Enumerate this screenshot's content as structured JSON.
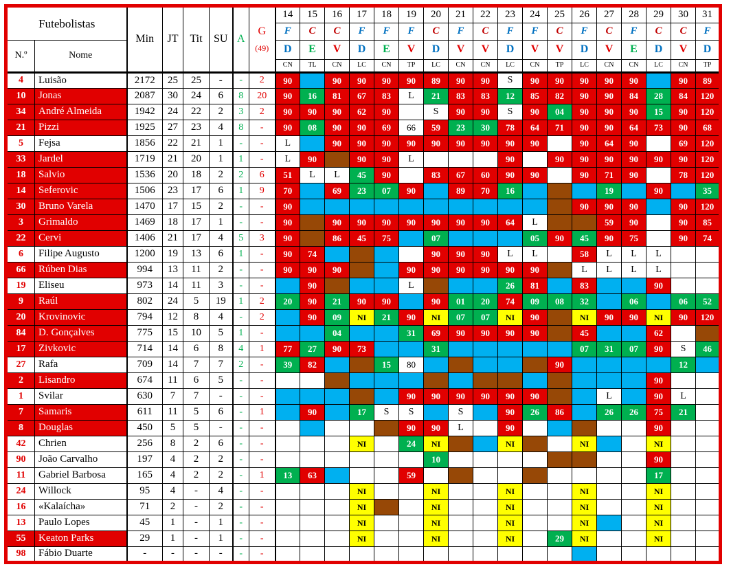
{
  "header": {
    "futebolistas": "Futebolistas",
    "num": "N.º",
    "nome": "Nome",
    "min": "Min",
    "jt": "JT",
    "tit": "Tit",
    "su": "SU",
    "a": "A",
    "g": "G",
    "g_total": "(49)"
  },
  "colors": {
    "red_cell": "#e10000",
    "green_cell": "#00b050",
    "blue_cell": "#00b0f0",
    "brown_cell": "#974806",
    "yellow_cell": "#ffff00",
    "venue_home": "#c00000",
    "venue_away": "#0070c0",
    "result_D": "#0070c0",
    "result_E": "#00b050",
    "result_V": "#e10000",
    "accent_red": "#e10000",
    "accent_green": "#00b050"
  },
  "matchdays": [
    {
      "n": "14",
      "venue": "F",
      "result": "D",
      "comp": "CN"
    },
    {
      "n": "15",
      "venue": "C",
      "result": "E",
      "comp": "TL"
    },
    {
      "n": "16",
      "venue": "C",
      "result": "V",
      "comp": "CN"
    },
    {
      "n": "17",
      "venue": "F",
      "result": "D",
      "comp": "LC"
    },
    {
      "n": "18",
      "venue": "F",
      "result": "E",
      "comp": "CN"
    },
    {
      "n": "19",
      "venue": "F",
      "result": "V",
      "comp": "TP"
    },
    {
      "n": "20",
      "venue": "C",
      "result": "D",
      "comp": "LC"
    },
    {
      "n": "21",
      "venue": "F",
      "result": "V",
      "comp": "CN"
    },
    {
      "n": "22",
      "venue": "C",
      "result": "V",
      "comp": "CN"
    },
    {
      "n": "23",
      "venue": "F",
      "result": "D",
      "comp": "LC"
    },
    {
      "n": "24",
      "venue": "F",
      "result": "V",
      "comp": "CN"
    },
    {
      "n": "25",
      "venue": "C",
      "result": "V",
      "comp": "TP"
    },
    {
      "n": "26",
      "venue": "F",
      "result": "D",
      "comp": "LC"
    },
    {
      "n": "27",
      "venue": "C",
      "result": "V",
      "comp": "CN"
    },
    {
      "n": "28",
      "venue": "F",
      "result": "E",
      "comp": "CN"
    },
    {
      "n": "29",
      "venue": "C",
      "result": "D",
      "comp": "LC"
    },
    {
      "n": "30",
      "venue": "C",
      "result": "V",
      "comp": "CN"
    },
    {
      "n": "31",
      "venue": "F",
      "result": "D",
      "comp": "TP"
    }
  ],
  "players": [
    {
      "num": "4",
      "name": "Luisão",
      "red": false,
      "min": "2172",
      "jt": "25",
      "tit": "25",
      "su": "-",
      "a": "-",
      "g": "2",
      "cells": [
        "R:90",
        "C",
        "R:90",
        "R:90",
        "R:90",
        "R:90",
        "R:89",
        "R:90",
        "R:90",
        "S",
        "R:90",
        "R:90",
        "R:90",
        "R:90",
        "R:90",
        "C",
        "R:90",
        "R:89"
      ]
    },
    {
      "num": "10",
      "name": "Jonas",
      "red": true,
      "min": "2087",
      "jt": "30",
      "tit": "24",
      "su": "6",
      "a": "8",
      "g": "20",
      "cells": [
        "R:90",
        "G:16",
        "R:81",
        "R:67",
        "R:83",
        "L",
        "G:21",
        "R:83",
        "R:83",
        "G:12",
        "R:85",
        "R:82",
        "R:90",
        "R:90",
        "R:84",
        "G:28",
        "R:84",
        "R:120"
      ]
    },
    {
      "num": "34",
      "name": "André Almeida",
      "red": true,
      "min": "1942",
      "jt": "24",
      "tit": "22",
      "su": "2",
      "a": "3",
      "g": "2",
      "cells": [
        "R:90",
        "R:90",
        "R:90",
        "R:62",
        "R:90",
        "",
        "S",
        "R:90",
        "R:90",
        "S",
        "R:90",
        "G:04",
        "R:90",
        "R:90",
        "R:90",
        "G:15",
        "R:90",
        "R:120"
      ]
    },
    {
      "num": "21",
      "name": "Pizzi",
      "red": true,
      "min": "1925",
      "jt": "27",
      "tit": "23",
      "su": "4",
      "a": "8",
      "g": "-",
      "cells": [
        "R:90",
        "G:08",
        "R:90",
        "R:90",
        "R:69",
        "W:66",
        "R:59",
        "G:23",
        "G:30",
        "R:78",
        "R:64",
        "R:71",
        "R:90",
        "R:90",
        "R:64",
        "R:73",
        "R:90",
        "R:68"
      ]
    },
    {
      "num": "5",
      "name": "Fejsa",
      "red": false,
      "min": "1856",
      "jt": "22",
      "tit": "21",
      "su": "1",
      "a": "-",
      "g": "-",
      "cells": [
        "L",
        "C",
        "R:90",
        "R:90",
        "R:90",
        "R:90",
        "R:90",
        "R:90",
        "R:90",
        "R:90",
        "R:90",
        "",
        "R:90",
        "R:64",
        "R:90",
        "",
        "R:69",
        "R:120"
      ]
    },
    {
      "num": "33",
      "name": "Jardel",
      "red": true,
      "min": "1719",
      "jt": "21",
      "tit": "20",
      "su": "1",
      "a": "1",
      "g": "-",
      "cells": [
        "L",
        "R:90",
        "B",
        "R:90",
        "R:90",
        "L",
        "",
        "",
        "",
        "R:90",
        "",
        "R:90",
        "R:90",
        "R:90",
        "R:90",
        "R:90",
        "R:90",
        "R:120"
      ]
    },
    {
      "num": "18",
      "name": "Salvio",
      "red": true,
      "min": "1536",
      "jt": "20",
      "tit": "18",
      "su": "2",
      "a": "2",
      "g": "6",
      "cells": [
        "R:51",
        "L",
        "L",
        "G:45",
        "R:90",
        "",
        "R:83",
        "R:67",
        "R:60",
        "R:90",
        "R:90",
        "",
        "R:90",
        "R:71",
        "R:90",
        "",
        "R:78",
        "R:120"
      ]
    },
    {
      "num": "14",
      "name": "Seferovic",
      "red": true,
      "min": "1506",
      "jt": "23",
      "tit": "17",
      "su": "6",
      "a": "1",
      "g": "9",
      "cells": [
        "R:70",
        "C",
        "R:69",
        "G:23",
        "G:07",
        "R:90",
        "C",
        "R:89",
        "R:70",
        "G:16",
        "C",
        "B",
        "C",
        "G:19",
        "C",
        "R:90",
        "C",
        "G:35"
      ]
    },
    {
      "num": "30",
      "name": "Bruno Varela",
      "red": true,
      "min": "1470",
      "jt": "17",
      "tit": "15",
      "su": "2",
      "a": "-",
      "g": "-",
      "cells": [
        "R:90",
        "C",
        "C",
        "C",
        "C",
        "C",
        "C",
        "C",
        "C",
        "C",
        "C",
        "B",
        "R:90",
        "R:90",
        "R:90",
        "C",
        "R:90",
        "R:120"
      ]
    },
    {
      "num": "3",
      "name": "Grimaldo",
      "red": true,
      "min": "1469",
      "jt": "18",
      "tit": "17",
      "su": "1",
      "a": "-",
      "g": "-",
      "cells": [
        "R:90",
        "B",
        "R:90",
        "R:90",
        "R:90",
        "R:90",
        "R:90",
        "R:90",
        "R:90",
        "R:64",
        "L",
        "B",
        "B",
        "R:59",
        "R:90",
        "",
        "R:90",
        "R:85"
      ]
    },
    {
      "num": "22",
      "name": "Cervi",
      "red": true,
      "min": "1406",
      "jt": "21",
      "tit": "17",
      "su": "4",
      "a": "5",
      "g": "3",
      "cells": [
        "R:90",
        "B",
        "R:86",
        "R:45",
        "R:75",
        "C",
        "G:07",
        "C",
        "C",
        "C",
        "G:05",
        "R:90",
        "G:45",
        "R:90",
        "R:75",
        "",
        "R:90",
        "R:74"
      ]
    },
    {
      "num": "6",
      "name": "Filipe Augusto",
      "red": false,
      "min": "1200",
      "jt": "19",
      "tit": "13",
      "su": "6",
      "a": "1",
      "g": "-",
      "cells": [
        "R:90",
        "R:74",
        "C",
        "B",
        "C",
        "",
        "R:90",
        "R:90",
        "R:90",
        "L",
        "L",
        "",
        "R:58",
        "L",
        "L",
        "L",
        "",
        ""
      ]
    },
    {
      "num": "66",
      "name": "Rúben Dias",
      "red": true,
      "min": "994",
      "jt": "13",
      "tit": "11",
      "su": "2",
      "a": "-",
      "g": "-",
      "cells": [
        "R:90",
        "R:90",
        "R:90",
        "B",
        "C",
        "R:90",
        "R:90",
        "R:90",
        "R:90",
        "R:90",
        "R:90",
        "B",
        "L",
        "L",
        "L",
        "L",
        "",
        ""
      ]
    },
    {
      "num": "19",
      "name": "Eliseu",
      "red": false,
      "min": "973",
      "jt": "14",
      "tit": "11",
      "su": "3",
      "a": "-",
      "g": "-",
      "cells": [
        "C",
        "R:90",
        "B",
        "C",
        "C",
        "L",
        "B",
        "C",
        "C",
        "G:26",
        "R:81",
        "C",
        "R:83",
        "C",
        "C",
        "R:90",
        "",
        ""
      ]
    },
    {
      "num": "9",
      "name": "Raúl",
      "red": true,
      "min": "802",
      "jt": "24",
      "tit": "5",
      "su": "19",
      "a": "1",
      "g": "2",
      "cells": [
        "G:20",
        "R:90",
        "G:21",
        "R:90",
        "R:90",
        "C",
        "R:90",
        "G:01",
        "G:20",
        "R:74",
        "G:09",
        "G:08",
        "G:32",
        "C",
        "G:06",
        "C",
        "G:06",
        "G:52"
      ]
    },
    {
      "num": "20",
      "name": "Krovinovic",
      "red": true,
      "min": "794",
      "jt": "12",
      "tit": "8",
      "su": "4",
      "a": "-",
      "g": "2",
      "cells": [
        "C",
        "R:90",
        "G:09",
        "Y",
        "G:21",
        "R:90",
        "Y",
        "G:07",
        "G:07",
        "Y",
        "R:90",
        "B",
        "Y",
        "R:90",
        "R:90",
        "Y",
        "R:90",
        "R:120"
      ]
    },
    {
      "num": "84",
      "name": "D. Gonçalves",
      "red": true,
      "min": "775",
      "jt": "15",
      "tit": "10",
      "su": "5",
      "a": "1",
      "g": "-",
      "cells": [
        "C",
        "C",
        "G:04",
        "C",
        "C",
        "G:31",
        "R:69",
        "R:90",
        "R:90",
        "R:90",
        "R:90",
        "B",
        "R:45",
        "C",
        "C",
        "R:62",
        "",
        "B"
      ]
    },
    {
      "num": "17",
      "name": "Zivkovic",
      "red": true,
      "min": "714",
      "jt": "14",
      "tit": "6",
      "su": "8",
      "a": "4",
      "g": "1",
      "cells": [
        "R:77",
        "G:27",
        "R:90",
        "R:73",
        "C",
        "C",
        "G:31",
        "C",
        "C",
        "C",
        "C",
        "C",
        "G:07",
        "G:31",
        "G:07",
        "R:90",
        "S",
        "G:46"
      ]
    },
    {
      "num": "27",
      "name": "Rafa",
      "red": false,
      "min": "709",
      "jt": "14",
      "tit": "7",
      "su": "7",
      "a": "2",
      "g": "-",
      "cells": [
        "G:39",
        "R:82",
        "C",
        "B",
        "G:15",
        "W:80",
        "C",
        "B",
        "C",
        "C",
        "B",
        "R:90",
        "C",
        "C",
        "C",
        "C",
        "G:12",
        "C"
      ]
    },
    {
      "num": "2",
      "name": "Lisandro",
      "red": true,
      "min": "674",
      "jt": "11",
      "tit": "6",
      "su": "5",
      "a": "-",
      "g": "-",
      "cells": [
        "",
        "",
        "B",
        "C",
        "C",
        "C",
        "B",
        "C",
        "B",
        "B",
        "C",
        "B",
        "C",
        "C",
        "C",
        "R:90",
        "",
        ""
      ]
    },
    {
      "num": "1",
      "name": "Svilar",
      "red": false,
      "min": "630",
      "jt": "7",
      "tit": "7",
      "su": "-",
      "a": "-",
      "g": "-",
      "cells": [
        "C",
        "C",
        "C",
        "B",
        "C",
        "R:90",
        "R:90",
        "R:90",
        "R:90",
        "R:90",
        "R:90",
        "B",
        "C",
        "L",
        "C",
        "R:90",
        "L",
        ""
      ]
    },
    {
      "num": "7",
      "name": "Samaris",
      "red": true,
      "min": "611",
      "jt": "11",
      "tit": "5",
      "su": "6",
      "a": "-",
      "g": "1",
      "cells": [
        "C",
        "R:90",
        "C",
        "G:17",
        "S",
        "S",
        "C",
        "S",
        "C",
        "R:90",
        "G:26",
        "R:86",
        "C",
        "G:26",
        "G:26",
        "R:75",
        "G:21",
        ""
      ]
    },
    {
      "num": "8",
      "name": "Douglas",
      "red": true,
      "min": "450",
      "jt": "5",
      "tit": "5",
      "su": "-",
      "a": "-",
      "g": "-",
      "cells": [
        "",
        "C",
        "",
        "",
        "B",
        "R:90",
        "R:90",
        "L",
        "",
        "R:90",
        "",
        "C",
        "B",
        "",
        "",
        "R:90",
        "",
        ""
      ]
    },
    {
      "num": "42",
      "name": "Chrien",
      "red": false,
      "min": "256",
      "jt": "8",
      "tit": "2",
      "su": "6",
      "a": "-",
      "g": "-",
      "cells": [
        "",
        "",
        "",
        "Y",
        "",
        "G:24",
        "Y",
        "B",
        "C",
        "Y",
        "B",
        "",
        "Y",
        "C",
        "",
        "Y",
        "",
        ""
      ]
    },
    {
      "num": "90",
      "name": "João Carvalho",
      "red": false,
      "min": "197",
      "jt": "4",
      "tit": "2",
      "su": "2",
      "a": "-",
      "g": "-",
      "cells": [
        "",
        "",
        "",
        "",
        "",
        "",
        "G:10",
        "",
        "",
        "",
        "",
        "B",
        "B",
        "",
        "",
        "R:90",
        "",
        ""
      ]
    },
    {
      "num": "11",
      "name": "Gabriel Barbosa",
      "red": false,
      "min": "165",
      "jt": "4",
      "tit": "2",
      "su": "2",
      "a": "-",
      "g": "1",
      "cells": [
        "G:13",
        "R:63",
        "C",
        "",
        "",
        "R:59",
        "",
        "B",
        "",
        "",
        "B",
        "",
        "",
        "",
        "",
        "G:17",
        "",
        ""
      ]
    },
    {
      "num": "24",
      "name": "Willock",
      "red": false,
      "min": "95",
      "jt": "4",
      "tit": "-",
      "su": "4",
      "a": "-",
      "g": "-",
      "cells": [
        "",
        "",
        "",
        "Y",
        "",
        "",
        "Y",
        "",
        "",
        "Y",
        "",
        "",
        "Y",
        "",
        "",
        "Y",
        "",
        ""
      ]
    },
    {
      "num": "16",
      "name": "«Kalaícha»",
      "red": false,
      "min": "71",
      "jt": "2",
      "tit": "-",
      "su": "2",
      "a": "-",
      "g": "-",
      "cells": [
        "",
        "",
        "",
        "Y",
        "B",
        "",
        "Y",
        "",
        "",
        "Y",
        "",
        "",
        "Y",
        "",
        "",
        "Y",
        "",
        ""
      ]
    },
    {
      "num": "13",
      "name": "Paulo Lopes",
      "red": false,
      "min": "45",
      "jt": "1",
      "tit": "-",
      "su": "1",
      "a": "-",
      "g": "-",
      "cells": [
        "",
        "",
        "",
        "Y",
        "",
        "",
        "Y",
        "",
        "",
        "Y",
        "",
        "",
        "Y",
        "C",
        "",
        "Y",
        "",
        ""
      ]
    },
    {
      "num": "55",
      "name": "Keaton Parks",
      "red": true,
      "min": "29",
      "jt": "1",
      "tit": "-",
      "su": "1",
      "a": "-",
      "g": "-",
      "cells": [
        "",
        "",
        "",
        "Y",
        "",
        "",
        "Y",
        "",
        "",
        "Y",
        "",
        "G:29",
        "Y",
        "",
        "",
        "Y",
        "",
        ""
      ]
    },
    {
      "num": "98",
      "name": "Fábio Duarte",
      "red": false,
      "min": "-",
      "jt": "-",
      "tit": "-",
      "su": "-",
      "a": "-",
      "g": "-",
      "cells": [
        "",
        "",
        "",
        "",
        "",
        "",
        "",
        "",
        "",
        "",
        "",
        "",
        "C",
        "",
        "",
        "",
        "",
        ""
      ]
    }
  ],
  "cell_legend": {
    "R": "started-minutes-played",
    "G": "substitute-minutes-played",
    "C": "unused-bench",
    "B": "not-in-squad",
    "Y": "NI",
    "L": "injured",
    "S": "suspended",
    "W": "minutes-played-plain"
  }
}
